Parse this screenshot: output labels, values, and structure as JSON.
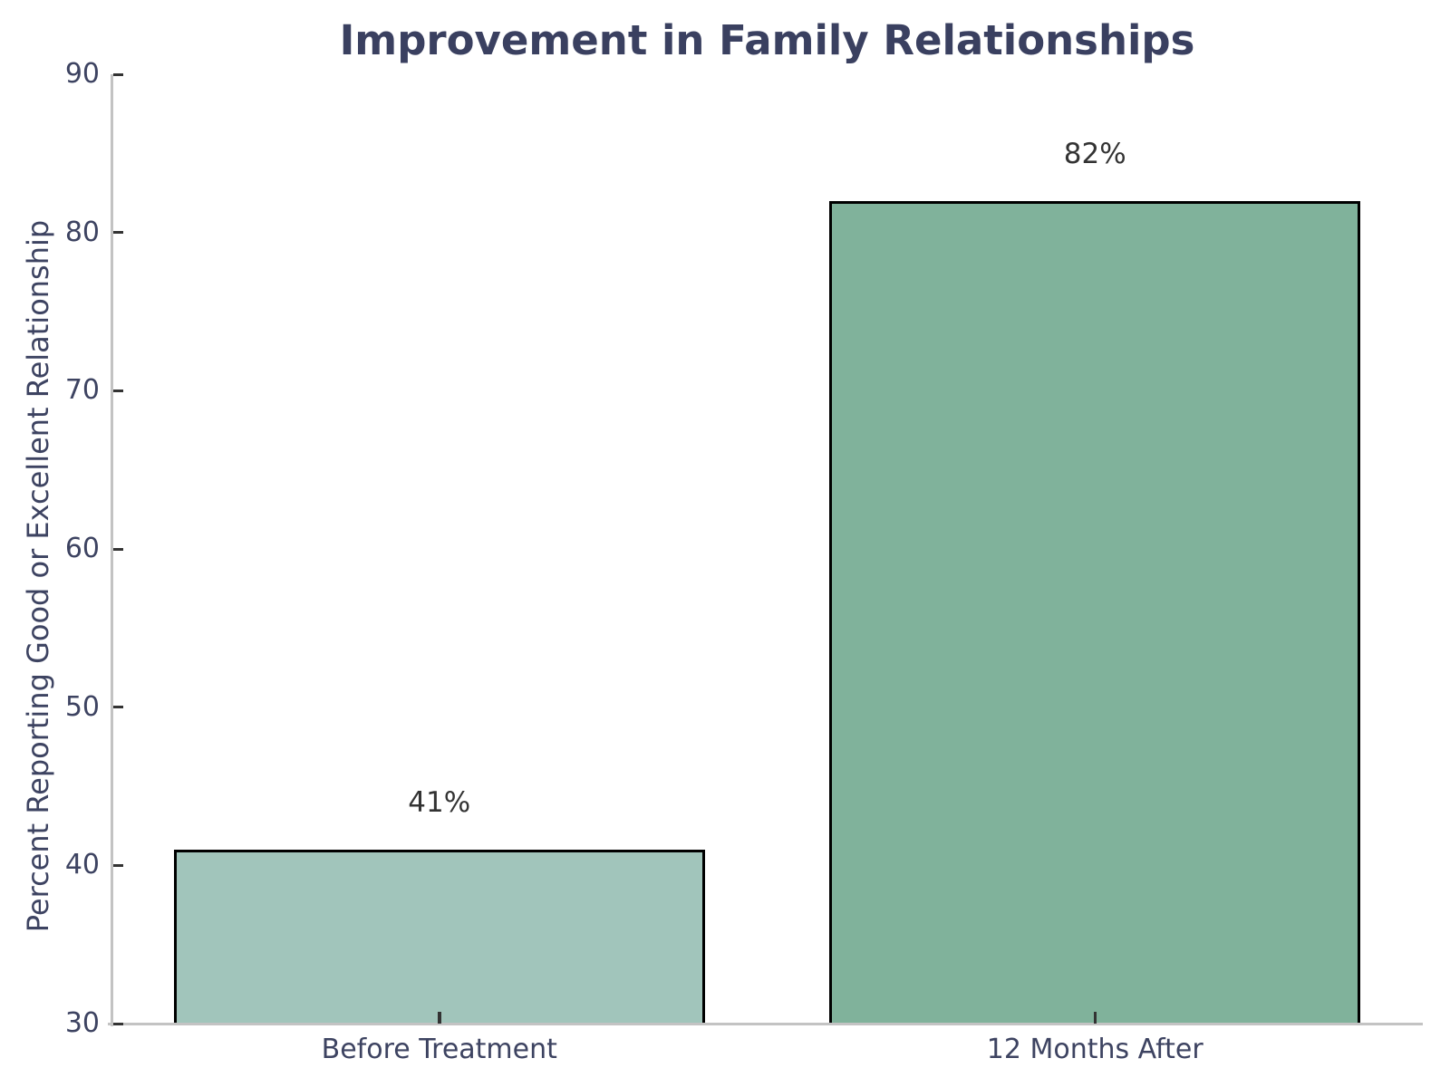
{
  "figure": {
    "title": "Improvement in Family Relationships"
  },
  "chart_data": {
    "type": "bar",
    "title": "Improvement in Family Relationships",
    "categories": [
      "Before Treatment",
      "12 Months After"
    ],
    "values": [
      41,
      82
    ],
    "value_labels": [
      "41%",
      "82%"
    ],
    "xlabel": "",
    "ylabel": "Percent Reporting Good or Excellent Relationship",
    "ylim": [
      30,
      90
    ],
    "yticks": [
      30,
      40,
      50,
      60,
      70,
      80,
      90
    ],
    "ytick_labels": [
      "30",
      "40",
      "50",
      "60",
      "70",
      "80",
      "90"
    ],
    "grid": false,
    "legend_position": "none",
    "bar_colors": [
      "#a1c5bb",
      "#80b29b"
    ],
    "bar_edge_color": "#000000"
  },
  "colors": {
    "title_text": "#3a4060",
    "tick_label_text": "#3d4361",
    "axis_label_text": "#3d4361",
    "value_label_text": "#333333",
    "spine": "#c3c3c3",
    "tick_mark": "#333333",
    "background": "#ffffff"
  }
}
